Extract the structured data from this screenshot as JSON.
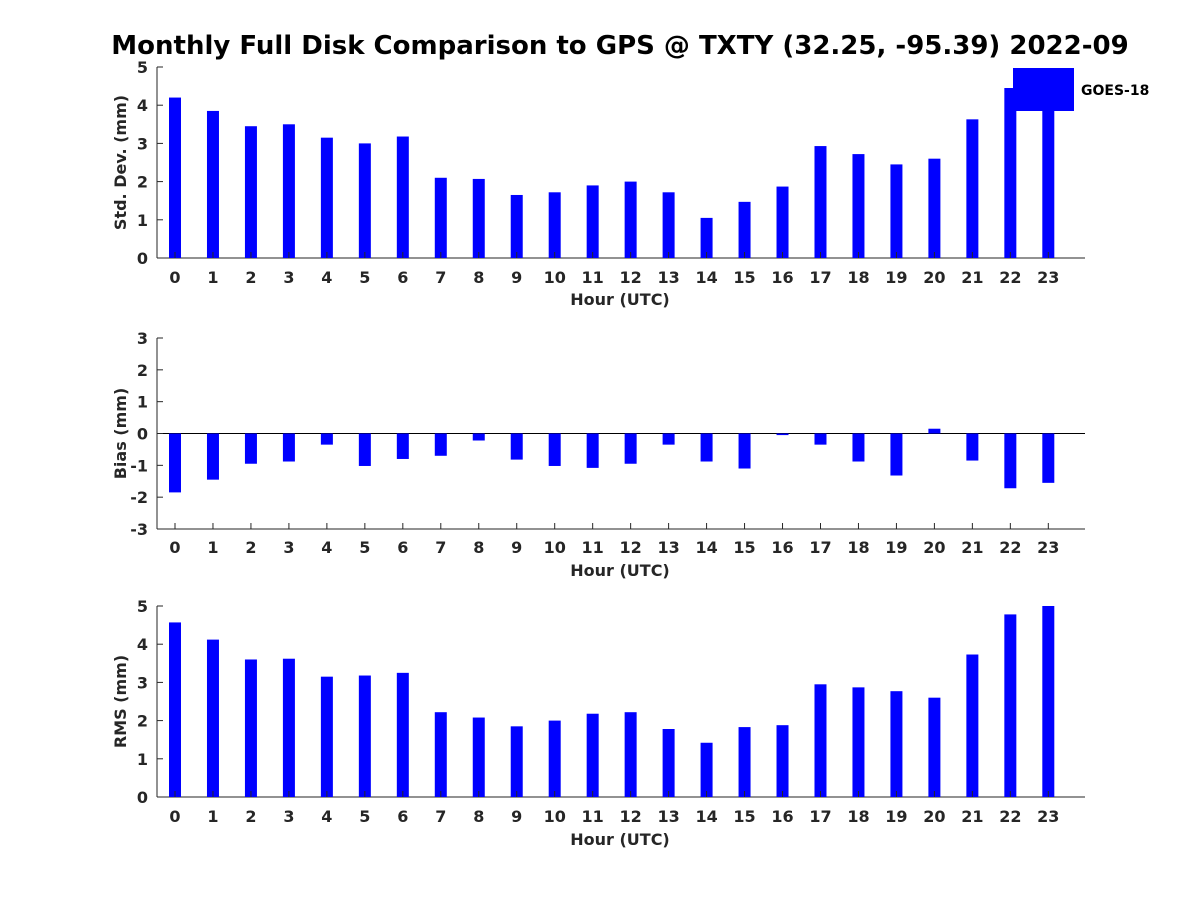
{
  "figure": {
    "title": "Monthly Full Disk Comparison to GPS @ TXTY (32.25, -95.39) 2022-09",
    "legend": {
      "label": "GOES-18",
      "color": "#0000FF",
      "placement": "top-right"
    },
    "bar_color": "#0000FF"
  },
  "chart_data": [
    {
      "type": "bar",
      "categories": [
        "0",
        "1",
        "2",
        "3",
        "4",
        "5",
        "6",
        "7",
        "8",
        "9",
        "10",
        "11",
        "12",
        "13",
        "14",
        "15",
        "16",
        "17",
        "18",
        "19",
        "20",
        "21",
        "22",
        "23"
      ],
      "series": [
        {
          "name": "GOES-18",
          "values": [
            4.2,
            3.85,
            3.45,
            3.5,
            3.15,
            3.0,
            3.18,
            2.1,
            2.07,
            1.65,
            1.72,
            1.9,
            2.0,
            1.72,
            1.05,
            1.47,
            1.87,
            2.93,
            2.72,
            2.45,
            2.6,
            3.63,
            4.45,
            4.1
          ]
        }
      ],
      "xlabel": "Hour (UTC)",
      "ylabel": "Std. Dev. (mm)",
      "ylim": [
        0,
        5
      ],
      "yticks": [
        "0",
        "1",
        "2",
        "3",
        "4",
        "5"
      ],
      "grid": false
    },
    {
      "type": "bar",
      "categories": [
        "0",
        "1",
        "2",
        "3",
        "4",
        "5",
        "6",
        "7",
        "8",
        "9",
        "10",
        "11",
        "12",
        "13",
        "14",
        "15",
        "16",
        "17",
        "18",
        "19",
        "20",
        "21",
        "22",
        "23"
      ],
      "series": [
        {
          "name": "GOES-18",
          "values": [
            -1.85,
            -1.45,
            -0.95,
            -0.88,
            -0.35,
            -1.02,
            -0.8,
            -0.7,
            -0.22,
            -0.82,
            -1.02,
            -1.08,
            -0.95,
            -0.35,
            -0.88,
            -1.1,
            -0.05,
            -0.35,
            -0.88,
            -1.32,
            0.15,
            -0.85,
            -1.72,
            -1.55
          ]
        }
      ],
      "xlabel": "Hour (UTC)",
      "ylabel": "Bias (mm)",
      "ylim": [
        -3,
        3
      ],
      "yticks": [
        "-3",
        "-2",
        "-1",
        "0",
        "1",
        "2",
        "3"
      ],
      "grid": false
    },
    {
      "type": "bar",
      "categories": [
        "0",
        "1",
        "2",
        "3",
        "4",
        "5",
        "6",
        "7",
        "8",
        "9",
        "10",
        "11",
        "12",
        "13",
        "14",
        "15",
        "16",
        "17",
        "18",
        "19",
        "20",
        "21",
        "22",
        "23"
      ],
      "series": [
        {
          "name": "GOES-18",
          "values": [
            4.57,
            4.12,
            3.6,
            3.62,
            3.15,
            3.18,
            3.25,
            2.22,
            2.08,
            1.85,
            2.0,
            2.18,
            2.22,
            1.78,
            1.42,
            1.83,
            1.88,
            2.95,
            2.87,
            2.77,
            2.6,
            3.73,
            4.78,
            5.0
          ]
        }
      ],
      "xlabel": "Hour (UTC)",
      "ylabel": "RMS (mm)",
      "ylim": [
        0,
        5
      ],
      "yticks": [
        "0",
        "1",
        "2",
        "3",
        "4",
        "5"
      ],
      "grid": false
    }
  ]
}
